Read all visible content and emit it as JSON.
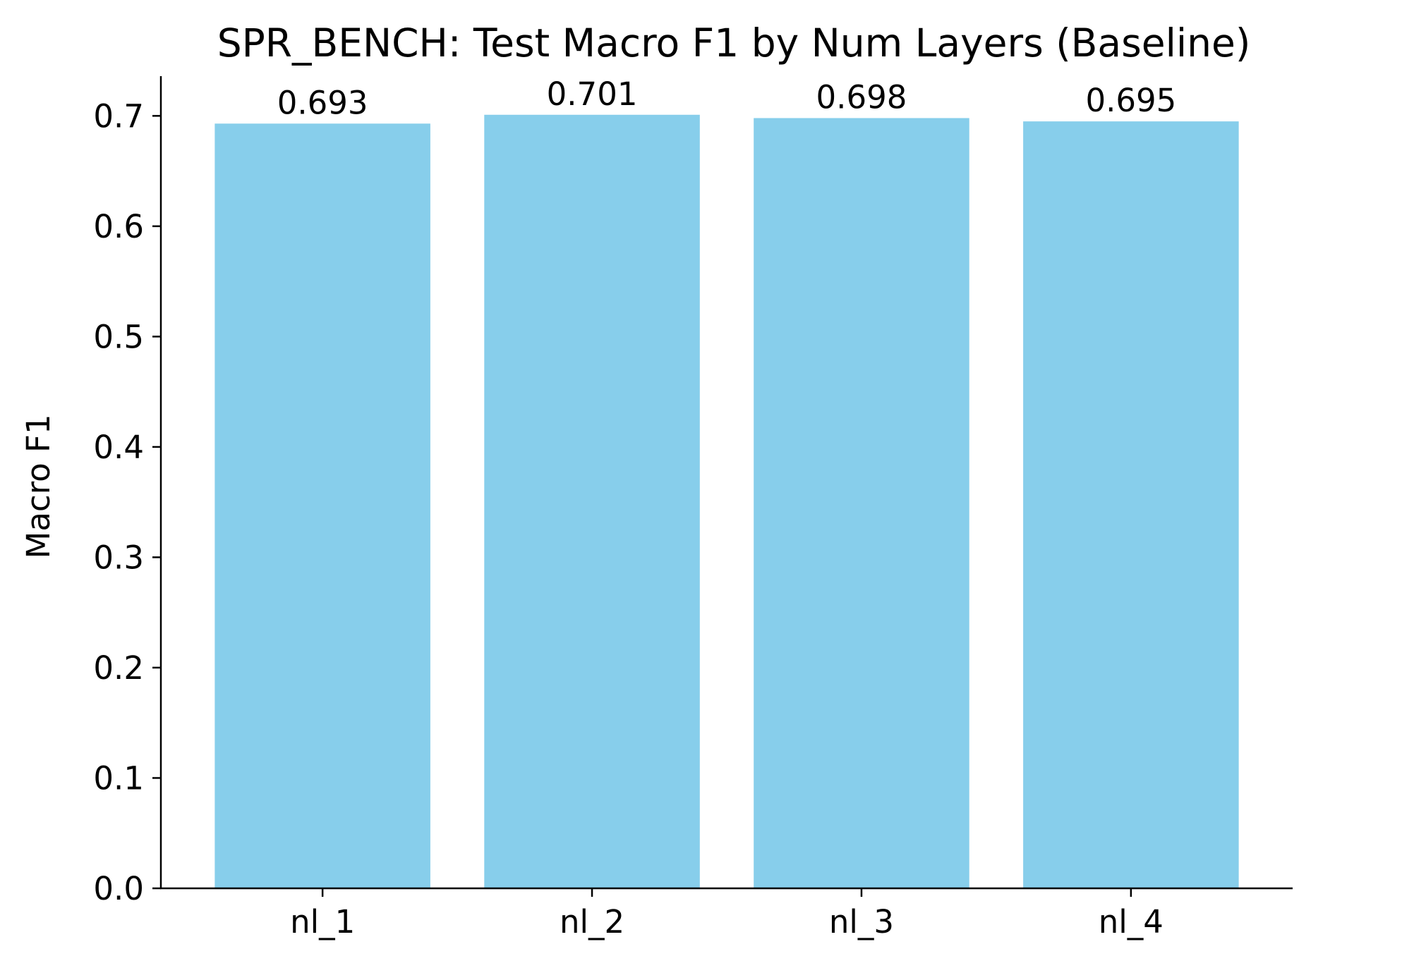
{
  "chart_data": {
    "type": "bar",
    "title": "SPR_BENCH: Test Macro F1 by Num Layers (Baseline)",
    "xlabel": "",
    "ylabel": "Macro F1",
    "categories": [
      "nl_1",
      "nl_2",
      "nl_3",
      "nl_4"
    ],
    "values": [
      0.693,
      0.701,
      0.698,
      0.695
    ],
    "data_labels": [
      "0.693",
      "0.701",
      "0.698",
      "0.695"
    ],
    "ylim": [
      0,
      0.736
    ],
    "yticks": [
      0.0,
      0.1,
      0.2,
      0.3,
      0.4,
      0.5,
      0.6,
      0.7
    ],
    "ytick_labels": [
      "0.0",
      "0.1",
      "0.2",
      "0.3",
      "0.4",
      "0.5",
      "0.6",
      "0.7"
    ],
    "bar_color": "#87ceeb",
    "grid": false,
    "legend": "none"
  }
}
